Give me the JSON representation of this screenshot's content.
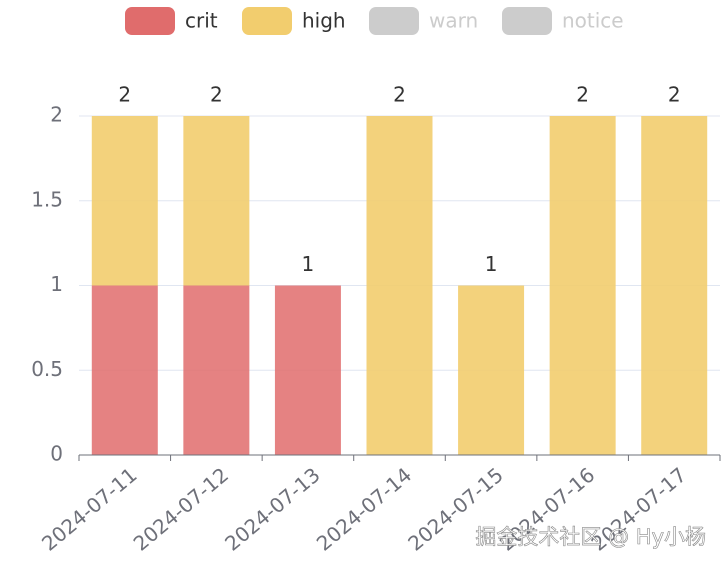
{
  "chart_data": {
    "type": "stacked_bar",
    "categories": [
      "2024-07-11",
      "2024-07-12",
      "2024-07-13",
      "2024-07-14",
      "2024-07-15",
      "2024-07-16",
      "2024-07-17"
    ],
    "series": [
      {
        "name": "crit",
        "color": "#e06c6c",
        "values": [
          1,
          1,
          1,
          0,
          0,
          0,
          0
        ],
        "visible": true
      },
      {
        "name": "high",
        "color": "#f2cd6e",
        "values": [
          1,
          1,
          0,
          2,
          1,
          2,
          2
        ],
        "visible": true
      },
      {
        "name": "warn",
        "color": "#cccccc",
        "values": [
          null,
          null,
          null,
          null,
          null,
          null,
          null
        ],
        "visible": false
      },
      {
        "name": "notice",
        "color": "#cccccc",
        "values": [
          null,
          null,
          null,
          null,
          null,
          null,
          null
        ],
        "visible": false
      }
    ],
    "totals": [
      2,
      2,
      1,
      2,
      1,
      2,
      2
    ],
    "ylim": [
      0,
      2
    ],
    "yticks": [
      0,
      0.5,
      1,
      1.5,
      2
    ],
    "grid": true,
    "legend": "top"
  },
  "watermark": "掘金技术社区 @ Hy小杨"
}
